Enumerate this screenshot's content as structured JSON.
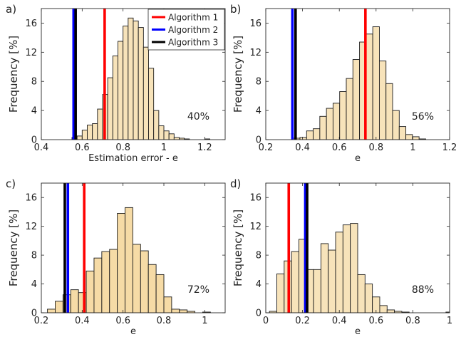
{
  "legend": {
    "placement": "top-right of panel a",
    "entries": [
      {
        "label": "Algorithm 1",
        "color": "#ff0000"
      },
      {
        "label": "Algorithm 2",
        "color": "#0000ff"
      },
      {
        "label": "Algorithm 3",
        "color": "#000000"
      }
    ]
  },
  "chart_data": [
    {
      "type": "bar",
      "panel_label": "a)",
      "xlabel": "Estimation error - e",
      "ylabel": "Frequency [%]",
      "xlim": [
        0.4,
        1.3
      ],
      "ylim": [
        0,
        18
      ],
      "xticks": [
        0.4,
        0.6,
        0.8,
        1,
        1.2
      ],
      "xtick_labels": [
        "0.4",
        "0.6",
        "0.8",
        "1",
        "1.2"
      ],
      "yticks": [
        0,
        4,
        8,
        12,
        16
      ],
      "bin_width": 0.025,
      "bin_starts": [
        0.55,
        0.575,
        0.6,
        0.625,
        0.65,
        0.675,
        0.7,
        0.725,
        0.75,
        0.775,
        0.8,
        0.825,
        0.85,
        0.875,
        0.9,
        0.925,
        0.95,
        0.975,
        1.0,
        1.025,
        1.05,
        1.075,
        1.1,
        1.125,
        1.15,
        1.175,
        1.2
      ],
      "values": [
        0.3,
        0.5,
        1.3,
        2.0,
        2.2,
        4.2,
        6.2,
        8.5,
        11.5,
        13.5,
        15.6,
        16.7,
        16.3,
        15.4,
        12.7,
        9.8,
        4.0,
        1.9,
        1.2,
        0.8,
        0.3,
        0.2,
        0.1,
        0.0,
        0.0,
        0.0,
        0.1
      ],
      "bar_color": "#f7e3ba",
      "vlines": [
        {
          "algorithm": "Algorithm 1",
          "x": 0.71,
          "color": "#ff0000"
        },
        {
          "algorithm": "Algorithm 2",
          "x": 0.558,
          "color": "#0000ff"
        },
        {
          "algorithm": "Algorithm 3",
          "x": 0.568,
          "color": "#000000"
        }
      ],
      "annotation": "40%"
    },
    {
      "type": "bar",
      "panel_label": "b)",
      "xlabel": "e",
      "ylabel": "Frequency [%]",
      "xlim": [
        0.2,
        1.2
      ],
      "ylim": [
        0,
        18
      ],
      "xticks": [
        0.2,
        0.4,
        0.6,
        0.8,
        1,
        1.2
      ],
      "xtick_labels": [
        "0.2",
        "0.4",
        "0.6",
        "0.8",
        "1",
        "1.2"
      ],
      "yticks": [
        0,
        4,
        8,
        12,
        16
      ],
      "bin_width": 0.036,
      "bin_starts": [
        0.35,
        0.386,
        0.422,
        0.458,
        0.494,
        0.53,
        0.566,
        0.602,
        0.638,
        0.674,
        0.71,
        0.746,
        0.782,
        0.818,
        0.854,
        0.89,
        0.926,
        0.962,
        0.998,
        1.034
      ],
      "values": [
        0.2,
        0.3,
        1.2,
        1.5,
        3.2,
        4.3,
        5.0,
        6.6,
        8.4,
        11.0,
        13.4,
        14.5,
        15.5,
        10.8,
        7.7,
        4.0,
        1.8,
        0.7,
        0.4,
        0.1
      ],
      "bar_color": "#f7e3ba",
      "vlines": [
        {
          "algorithm": "Algorithm 1",
          "x": 0.742,
          "color": "#ff0000"
        },
        {
          "algorithm": "Algorithm 2",
          "x": 0.345,
          "color": "#0000ff"
        },
        {
          "algorithm": "Algorithm 3",
          "x": 0.362,
          "color": "#000000"
        }
      ],
      "annotation": "56%"
    },
    {
      "type": "bar",
      "panel_label": "c)",
      "xlabel": "e",
      "ylabel": "Frequency [%]",
      "xlim": [
        0.2,
        1.1
      ],
      "ylim": [
        0,
        18
      ],
      "xticks": [
        0.2,
        0.4,
        0.6,
        0.8,
        1
      ],
      "xtick_labels": [
        "0.2",
        "0.4",
        "0.6",
        "0.8",
        "1"
      ],
      "yticks": [
        0,
        4,
        8,
        12,
        16
      ],
      "bin_width": 0.038,
      "bin_starts": [
        0.23,
        0.268,
        0.306,
        0.344,
        0.382,
        0.42,
        0.458,
        0.496,
        0.534,
        0.572,
        0.61,
        0.648,
        0.686,
        0.724,
        0.762,
        0.8,
        0.838,
        0.876,
        0.914,
        0.952,
        0.99
      ],
      "values": [
        0.5,
        1.6,
        2.5,
        3.2,
        2.8,
        5.8,
        7.6,
        8.5,
        8.8,
        13.8,
        14.6,
        9.5,
        8.6,
        6.7,
        5.3,
        2.2,
        0.5,
        0.4,
        0.2,
        0.0,
        0.1
      ],
      "bar_color": "#f6dba6",
      "vlines": [
        {
          "algorithm": "Algorithm 1",
          "x": 0.41,
          "color": "#ff0000"
        },
        {
          "algorithm": "Algorithm 2",
          "x": 0.33,
          "color": "#0000ff"
        },
        {
          "algorithm": "Algorithm 3",
          "x": 0.315,
          "color": "#000000"
        }
      ],
      "annotation": "72%"
    },
    {
      "type": "bar",
      "panel_label": "d)",
      "xlabel": "e",
      "ylabel": "Frequency [%]",
      "xlim": [
        0,
        1
      ],
      "ylim": [
        0,
        18
      ],
      "xticks": [
        0,
        0.2,
        0.4,
        0.6,
        0.8,
        1
      ],
      "xtick_labels": [
        "0",
        "0.2",
        "0.4",
        "0.6",
        "0.8",
        "1"
      ],
      "yticks": [
        0,
        4,
        8,
        12,
        16
      ],
      "bin_width": 0.04,
      "bin_starts": [
        0.02,
        0.06,
        0.1,
        0.14,
        0.18,
        0.22,
        0.26,
        0.3,
        0.34,
        0.38,
        0.42,
        0.46,
        0.5,
        0.54,
        0.58,
        0.62,
        0.66,
        0.7,
        0.74,
        0.78,
        0.82,
        0.86,
        0.9,
        0.94,
        0.98
      ],
      "values": [
        0.2,
        5.4,
        7.2,
        8.5,
        10.2,
        6.0,
        6.0,
        9.6,
        8.7,
        11.2,
        12.2,
        12.4,
        5.3,
        4.0,
        2.2,
        1.0,
        0.4,
        0.2,
        0.1,
        0.0,
        0.0,
        0.0,
        0.0,
        0.0,
        0.1
      ],
      "bar_color": "#f7e3ba",
      "vlines": [
        {
          "algorithm": "Algorithm 1",
          "x": 0.125,
          "color": "#ff0000"
        },
        {
          "algorithm": "Algorithm 2",
          "x": 0.215,
          "color": "#0000ff"
        },
        {
          "algorithm": "Algorithm 3",
          "x": 0.225,
          "color": "#000000"
        }
      ],
      "annotation": "88%"
    }
  ]
}
